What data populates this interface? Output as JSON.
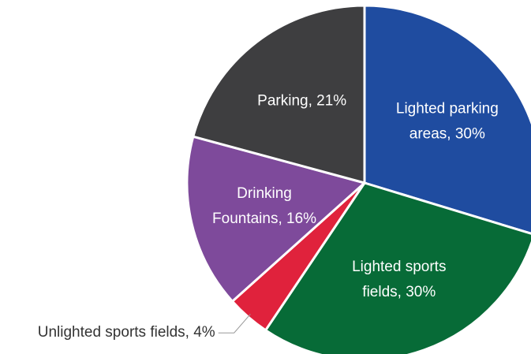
{
  "chart_data": {
    "type": "pie",
    "labels": [
      [
        "Lighted parking",
        "areas, 30%"
      ],
      [
        "Lighted sports",
        "fields, 30%"
      ],
      [
        "Unlighted sports fields, 4%"
      ],
      [
        "Drinking",
        "Fountains, 16%"
      ],
      [
        "Parking, 21%"
      ]
    ],
    "values": [
      30,
      30,
      4,
      16,
      21
    ],
    "colors": [
      "#1f4ca0",
      "#076b37",
      "#e0223c",
      "#7e4a9b",
      "#3e3e40"
    ]
  }
}
